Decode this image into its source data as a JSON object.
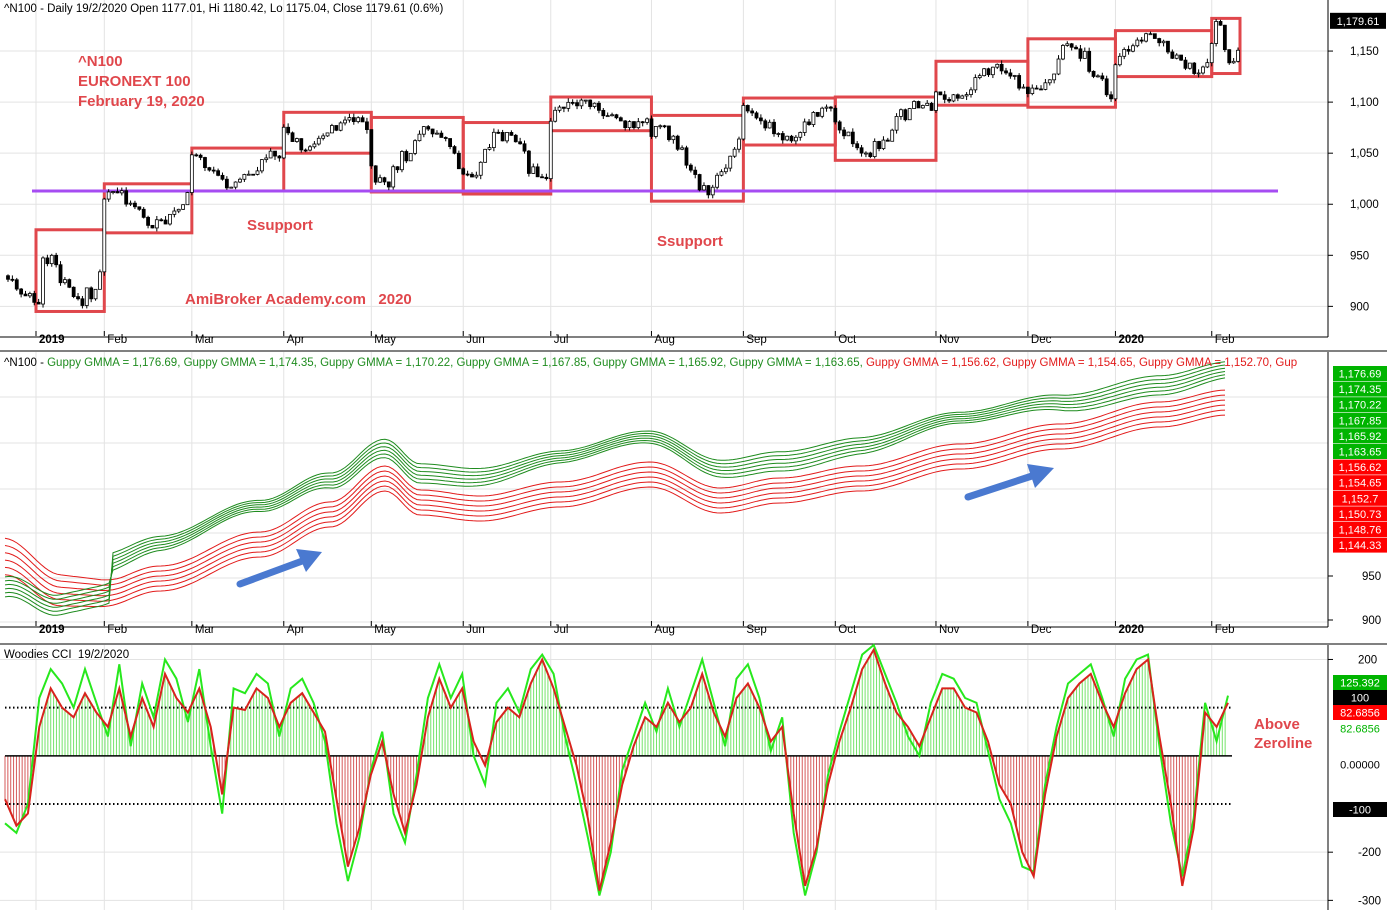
{
  "colors": {
    "bg": "#ffffff",
    "grid": "#e3e3e3",
    "axis": "#000000",
    "candle": "#000000",
    "box": "#e0474c",
    "support": "#a64cf2",
    "annot": "#e0474c",
    "gmma_short": "#1f8c1f",
    "gmma_long": "#e21b1b",
    "cci_line": "#d8231d",
    "cci_turbo": "#27e81d",
    "hist_pos": "#76e36b",
    "hist_neg": "#d65a5a",
    "arrow": "#4a79d0",
    "badge_green": "#00b400",
    "badge_red": "#ff0000"
  },
  "chart_data": [
    {
      "type": "candlestick",
      "header": "^N100 - Daily 19/2/2020 Open 1177.01, Hi 1180.42, Lo 1175.04, Close 1179.61 (0.6%)",
      "annotation": [
        "^N100",
        "EURONEXT 100",
        "February 19, 2020"
      ],
      "watermark": "AmiBroker Academy.com   2020",
      "ylim": [
        870,
        1200
      ],
      "yticks": [
        "900",
        "950",
        "1,000",
        "1,050",
        "1,100",
        "1,150"
      ],
      "ytick_values": [
        900,
        950,
        1000,
        1050,
        1100,
        1150
      ],
      "last_close_label": "1,179.61",
      "last_close": 1179.61,
      "support_level": 1013,
      "support_labels": [
        "Ssupport",
        "Ssupport"
      ],
      "x_axis": [
        "2019",
        "Feb",
        "Mar",
        "Apr",
        "May",
        "Jun",
        "Jul",
        "Aug",
        "Sep",
        "Oct",
        "Nov",
        "Dec",
        "2020",
        "Feb"
      ],
      "monthly_ranges": [
        {
          "month": "Jan 2019",
          "low": 895,
          "high": 975
        },
        {
          "month": "Feb 2019",
          "low": 972,
          "high": 1020
        },
        {
          "month": "Mar 2019",
          "low": 1013,
          "high": 1055
        },
        {
          "month": "Apr 2019",
          "low": 1050,
          "high": 1090
        },
        {
          "month": "May 2019",
          "low": 1012,
          "high": 1085
        },
        {
          "month": "Jun 2019",
          "low": 1010,
          "high": 1080
        },
        {
          "month": "Jul 2019",
          "low": 1072,
          "high": 1105
        },
        {
          "month": "Aug 2019",
          "low": 1003,
          "high": 1087
        },
        {
          "month": "Sep 2019",
          "low": 1058,
          "high": 1104
        },
        {
          "month": "Oct 2019",
          "low": 1043,
          "high": 1105
        },
        {
          "month": "Nov 2019",
          "low": 1097,
          "high": 1140
        },
        {
          "month": "Dec 2019",
          "low": 1095,
          "high": 1162
        },
        {
          "month": "Jan 2020",
          "low": 1125,
          "high": 1170
        },
        {
          "month": "Feb 2020",
          "low": 1128,
          "high": 1182
        }
      ]
    },
    {
      "type": "line",
      "header_parts": [
        {
          "text": "^N100 - ",
          "color": "#000000"
        },
        {
          "text": "Guppy GMMA = 1,176.69, Guppy GMMA = 1,174.35, Guppy GMMA = 1,170.22, Guppy GMMA = 1,167.85, Guppy GMMA = 1,165.92, Guppy GMMA = 1,163.65, ",
          "color": "#1f8c1f"
        },
        {
          "text": "Guppy GMMA = 1,156.62, Guppy GMMA = 1,154.65, Guppy GMMA = 1,152.70, Gup",
          "color": "#e21b1b"
        }
      ],
      "yticks": [
        "900",
        "950"
      ],
      "ytick_values": [
        900,
        950
      ],
      "x_axis": [
        "2019",
        "Feb",
        "Mar",
        "Apr",
        "May",
        "Jun",
        "Jul",
        "Aug",
        "Sep",
        "Oct",
        "Nov",
        "Dec",
        "2020",
        "Feb"
      ],
      "series": [
        {
          "group": "short",
          "last": 1176.69
        },
        {
          "group": "short",
          "last": 1174.35
        },
        {
          "group": "short",
          "last": 1170.22
        },
        {
          "group": "short",
          "last": 1167.85
        },
        {
          "group": "short",
          "last": 1165.92
        },
        {
          "group": "short",
          "last": 1163.65
        },
        {
          "group": "long",
          "last": 1156.62
        },
        {
          "group": "long",
          "last": 1154.65
        },
        {
          "group": "long",
          "last": 1152.7
        },
        {
          "group": "long",
          "last": 1150.73
        },
        {
          "group": "long",
          "last": 1148.76
        },
        {
          "group": "long",
          "last": 1144.33
        }
      ],
      "last_labels": [
        "1,176.69",
        "1,174.35",
        "1,170.22",
        "1,167.85",
        "1,165.92",
        "1,163.65",
        "1,156.62",
        "1,154.65",
        "1,152.7",
        "1,150.73",
        "1,148.76",
        "1,144.33"
      ],
      "last_label_groups": [
        "short",
        "short",
        "short",
        "short",
        "short",
        "short",
        "long",
        "long",
        "long",
        "long",
        "long",
        "long"
      ]
    },
    {
      "type": "line",
      "header": "Woodies CCI  19/2/2020",
      "ylim": [
        -320,
        230
      ],
      "yticks": [
        "200",
        "-200",
        "-300"
      ],
      "ytick_values": [
        200,
        -200,
        -300
      ],
      "reference_lines": [
        100,
        0,
        -100
      ],
      "value_labels": [
        {
          "text": "125.392",
          "value": 125.392,
          "style": "green"
        },
        {
          "text": "100",
          "value": 100,
          "style": "black"
        },
        {
          "text": "82.6856",
          "value": 82.6856,
          "style": "red"
        },
        {
          "text": "82.6856",
          "value": 82.6856,
          "style": "lightgreen"
        },
        {
          "text": "0.00000",
          "value": 0,
          "style": "white"
        },
        {
          "text": "-100",
          "value": -100,
          "style": "black"
        }
      ],
      "annotation": [
        "Above",
        "Zeroline"
      ],
      "series": [
        {
          "name": "",
          "type": "cci",
          "values": [
            -90,
            -145,
            -120,
            60,
            140,
            100,
            80,
            130,
            90,
            60,
            140,
            40,
            120,
            60,
            170,
            120,
            90,
            140,
            60,
            -80,
            100,
            95,
            140,
            120,
            60,
            110,
            130,
            90,
            50,
            -90,
            -230,
            -150,
            -40,
            30,
            -80,
            -160,
            -60,
            80,
            160,
            100,
            140,
            30,
            -20,
            70,
            100,
            80,
            150,
            200,
            140,
            60,
            -20,
            -130,
            -280,
            -180,
            -60,
            20,
            80,
            60,
            110,
            70,
            100,
            170,
            90,
            40,
            120,
            150,
            100,
            30,
            60,
            -120,
            -270,
            -190,
            -60,
            30,
            100,
            180,
            220,
            150,
            90,
            60,
            20,
            80,
            140,
            140,
            100,
            90,
            30,
            -60,
            -100,
            -200,
            -250,
            -80,
            40,
            120,
            150,
            170,
            110,
            60,
            130,
            180,
            200,
            40,
            -100,
            -270,
            -150,
            90,
            60,
            110
          ]
        },
        {
          "name": "",
          "type": "turbo",
          "values": [
            -140,
            -160,
            -100,
            120,
            180,
            150,
            100,
            180,
            110,
            40,
            190,
            20,
            150,
            80,
            200,
            160,
            70,
            180,
            20,
            -120,
            140,
            130,
            170,
            150,
            40,
            140,
            160,
            110,
            30,
            -140,
            -260,
            -170,
            -30,
            50,
            -120,
            -180,
            -40,
            120,
            190,
            120,
            170,
            0,
            -60,
            110,
            140,
            90,
            180,
            210,
            170,
            40,
            -60,
            -170,
            -290,
            -200,
            -30,
            40,
            110,
            50,
            140,
            60,
            130,
            200,
            110,
            20,
            160,
            190,
            120,
            10,
            80,
            -160,
            -290,
            -200,
            -40,
            50,
            130,
            210,
            230,
            170,
            110,
            40,
            0,
            110,
            170,
            160,
            120,
            110,
            10,
            -90,
            -140,
            -230,
            -240,
            -60,
            60,
            150,
            170,
            190,
            120,
            40,
            160,
            200,
            210,
            20,
            -140,
            -250,
            -130,
            110,
            30,
            125
          ]
        }
      ]
    }
  ]
}
